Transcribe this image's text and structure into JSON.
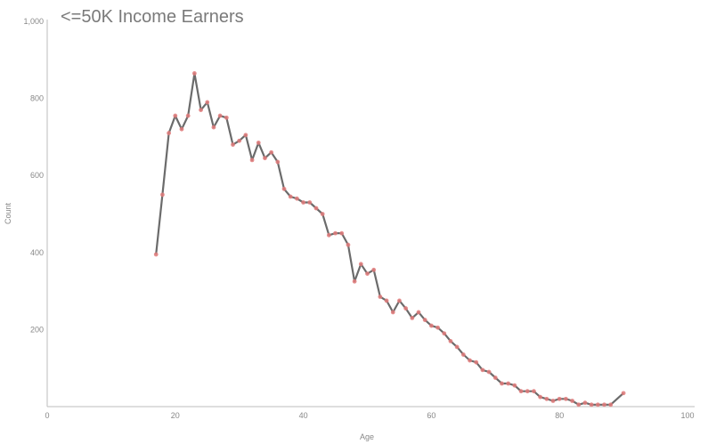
{
  "chart_data": {
    "type": "line",
    "title": "<=50K Income Earners",
    "xlabel": "Age",
    "ylabel": "Count",
    "xlim": [
      0,
      100
    ],
    "ylim": [
      0,
      1000
    ],
    "x_ticks": [
      "0",
      "20",
      "40",
      "60",
      "80",
      "100"
    ],
    "y_ticks": [
      "1,000",
      "800",
      "600",
      "400",
      "200"
    ],
    "grid": false,
    "line_color": "#6b6b6b",
    "marker_color": "#e07a7a",
    "series": [
      {
        "x": [
          17,
          18,
          19,
          20,
          21,
          22,
          23,
          24,
          25,
          26,
          27,
          28,
          29,
          30,
          31,
          32,
          33,
          34,
          35,
          36,
          37,
          38,
          39,
          40,
          41,
          42,
          43,
          44,
          45,
          46,
          47,
          48,
          49,
          50,
          51,
          52,
          53,
          54,
          55,
          56,
          57,
          58,
          59,
          60,
          61,
          62,
          63,
          64,
          65,
          66,
          67,
          68,
          69,
          70,
          71,
          72,
          73,
          74,
          75,
          76,
          77,
          78,
          79,
          80,
          81,
          82,
          83,
          84,
          85,
          86,
          87,
          88,
          90
        ],
        "y": [
          395,
          550,
          710,
          755,
          720,
          755,
          865,
          770,
          790,
          725,
          755,
          750,
          680,
          690,
          705,
          640,
          685,
          645,
          660,
          635,
          565,
          545,
          540,
          530,
          530,
          515,
          500,
          445,
          450,
          450,
          420,
          325,
          370,
          345,
          355,
          285,
          275,
          245,
          275,
          255,
          230,
          245,
          225,
          210,
          205,
          190,
          170,
          155,
          135,
          120,
          115,
          95,
          90,
          75,
          60,
          60,
          55,
          40,
          40,
          40,
          25,
          20,
          15,
          20,
          20,
          15,
          5,
          10,
          5,
          5,
          5,
          5,
          35
        ]
      }
    ]
  }
}
